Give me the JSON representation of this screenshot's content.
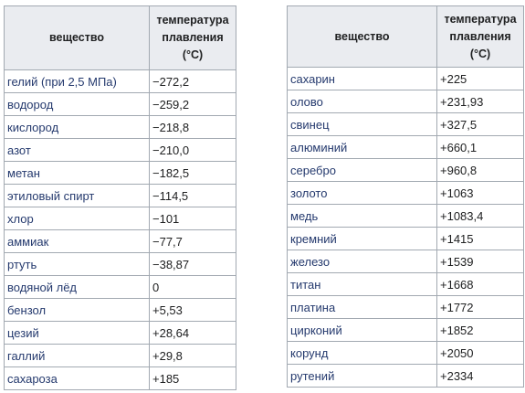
{
  "left_table": {
    "header_substance": "вещество",
    "header_temp": [
      "температура",
      "плавления",
      "(°C)"
    ],
    "rows": [
      {
        "name": "гелий (при 2,5 МПа)",
        "value": "−272,2"
      },
      {
        "name": "водород",
        "value": "−259,2"
      },
      {
        "name": "кислород",
        "value": "−218,8"
      },
      {
        "name": "азот",
        "value": "−210,0"
      },
      {
        "name": "метан",
        "value": "−182,5"
      },
      {
        "name": "этиловый спирт",
        "value": "−114,5"
      },
      {
        "name": "хлор",
        "value": "−101"
      },
      {
        "name": "аммиак",
        "value": "−77,7"
      },
      {
        "name": "ртуть",
        "value": "−38,87"
      },
      {
        "name": "водяной лёд",
        "value": "0"
      },
      {
        "name": "бензол",
        "value": "+5,53"
      },
      {
        "name": "цезий",
        "value": "+28,64"
      },
      {
        "name": "галлий",
        "value": "+29,8"
      },
      {
        "name": "сахароза",
        "value": "+185"
      }
    ]
  },
  "right_table": {
    "header_substance": "вещество",
    "header_temp": [
      "температура",
      "плавления",
      "(°C)"
    ],
    "rows": [
      {
        "name": "сахарин",
        "value": "+225"
      },
      {
        "name": "олово",
        "value": "+231,93"
      },
      {
        "name": "свинец",
        "value": "+327,5"
      },
      {
        "name": "алюминий",
        "value": "+660,1"
      },
      {
        "name": "серебро",
        "value": "+960,8"
      },
      {
        "name": "золото",
        "value": "+1063"
      },
      {
        "name": "медь",
        "value": "+1083,4"
      },
      {
        "name": "кремний",
        "value": "+1415"
      },
      {
        "name": "железо",
        "value": "+1539"
      },
      {
        "name": "титан",
        "value": "+1668"
      },
      {
        "name": "платина",
        "value": "+1772"
      },
      {
        "name": "цирконий",
        "value": "+1852"
      },
      {
        "name": "корунд",
        "value": "+2050"
      },
      {
        "name": "рутений",
        "value": "+2334"
      }
    ]
  },
  "colors": {
    "link": "#253a6e",
    "header_bg": "#eaecf0",
    "border": "#a2a9b1"
  }
}
